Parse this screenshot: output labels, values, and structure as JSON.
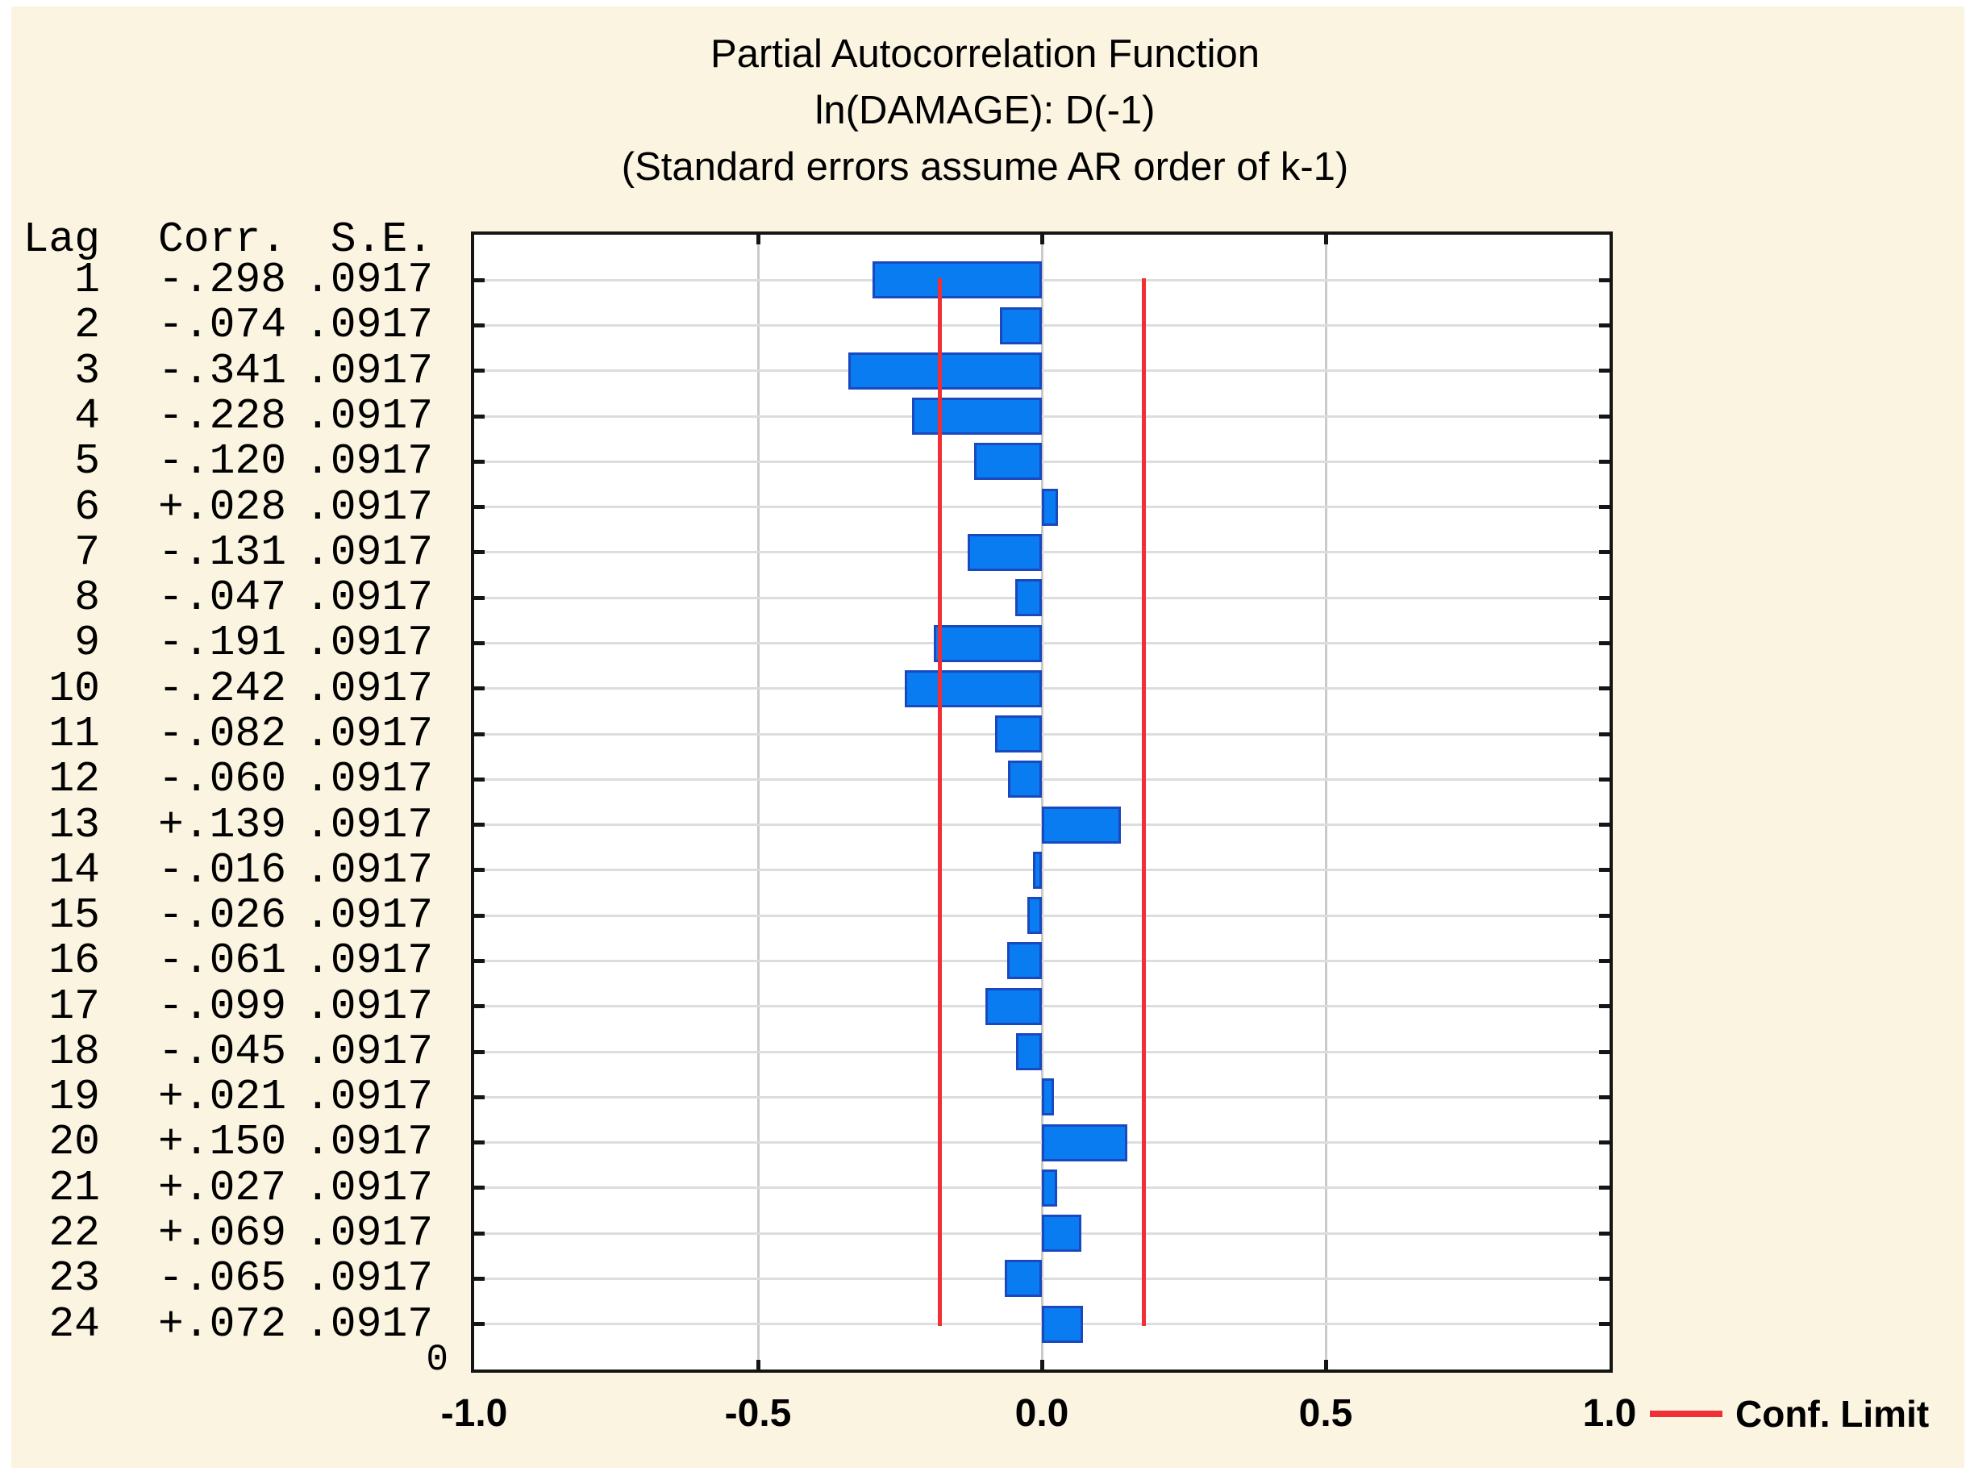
{
  "chart_data": {
    "type": "bar",
    "orientation": "horizontal",
    "title": "Partial Autocorrelation Function",
    "subtitle": "ln(DAMAGE): D(-1)",
    "note": "(Standard errors assume AR order of k-1)",
    "title_lines": [
      "Partial Autocorrelation Function",
      "ln(DAMAGE): D(-1)",
      "(Standard errors assume AR order of k-1)"
    ],
    "xlim": [
      -1.0,
      1.0
    ],
    "x_tick_values": [
      -1.0,
      -0.5,
      0.0,
      0.5,
      1.0
    ],
    "x_tick_labels": [
      "-1.0",
      "-0.5",
      "0.0",
      "0.5",
      "1.0"
    ],
    "grid_x_values": [
      -0.5,
      0.0,
      0.5
    ],
    "lags": [
      1,
      2,
      3,
      4,
      5,
      6,
      7,
      8,
      9,
      10,
      11,
      12,
      13,
      14,
      15,
      16,
      17,
      18,
      19,
      20,
      21,
      22,
      23,
      24
    ],
    "values": [
      -0.298,
      -0.074,
      -0.341,
      -0.228,
      -0.12,
      0.028,
      -0.131,
      -0.047,
      -0.191,
      -0.242,
      -0.082,
      -0.06,
      0.139,
      -0.016,
      -0.026,
      -0.061,
      -0.099,
      -0.045,
      0.021,
      0.15,
      0.027,
      0.069,
      -0.065,
      0.072
    ],
    "se_value": 0.0917,
    "conf_limit": 0.1797,
    "origin_label": "0",
    "table": {
      "headers": [
        "Lag",
        "Corr.",
        "S.E."
      ],
      "rows": [
        {
          "lag": "1",
          "corr": "-.298",
          "se": ".0917"
        },
        {
          "lag": "2",
          "corr": "-.074",
          "se": ".0917"
        },
        {
          "lag": "3",
          "corr": "-.341",
          "se": ".0917"
        },
        {
          "lag": "4",
          "corr": "-.228",
          "se": ".0917"
        },
        {
          "lag": "5",
          "corr": "-.120",
          "se": ".0917"
        },
        {
          "lag": "6",
          "corr": "+.028",
          "se": ".0917"
        },
        {
          "lag": "7",
          "corr": "-.131",
          "se": ".0917"
        },
        {
          "lag": "8",
          "corr": "-.047",
          "se": ".0917"
        },
        {
          "lag": "9",
          "corr": "-.191",
          "se": ".0917"
        },
        {
          "lag": "10",
          "corr": "-.242",
          "se": ".0917"
        },
        {
          "lag": "11",
          "corr": "-.082",
          "se": ".0917"
        },
        {
          "lag": "12",
          "corr": "-.060",
          "se": ".0917"
        },
        {
          "lag": "13",
          "corr": "+.139",
          "se": ".0917"
        },
        {
          "lag": "14",
          "corr": "-.016",
          "se": ".0917"
        },
        {
          "lag": "15",
          "corr": "-.026",
          "se": ".0917"
        },
        {
          "lag": "16",
          "corr": "-.061",
          "se": ".0917"
        },
        {
          "lag": "17",
          "corr": "-.099",
          "se": ".0917"
        },
        {
          "lag": "18",
          "corr": "-.045",
          "se": ".0917"
        },
        {
          "lag": "19",
          "corr": "+.021",
          "se": ".0917"
        },
        {
          "lag": "20",
          "corr": "+.150",
          "se": ".0917"
        },
        {
          "lag": "21",
          "corr": "+.027",
          "se": ".0917"
        },
        {
          "lag": "22",
          "corr": "+.069",
          "se": ".0917"
        },
        {
          "lag": "23",
          "corr": "-.065",
          "se": ".0917"
        },
        {
          "lag": "24",
          "corr": "+.072",
          "se": ".0917"
        }
      ]
    },
    "legend": {
      "label": "Conf. Limit",
      "position": "bottom-right"
    },
    "colors": {
      "panel_bg": "#FAF4E1",
      "plot_bg": "#FFFFFF",
      "box_border": "#151515",
      "grid_h": "#DDDDDD",
      "grid_v": "#CACACA",
      "bar_fill": "#0A7CF2",
      "bar_border": "#1A48BE",
      "conf_line": "#F02F36",
      "text": "#000000"
    }
  }
}
